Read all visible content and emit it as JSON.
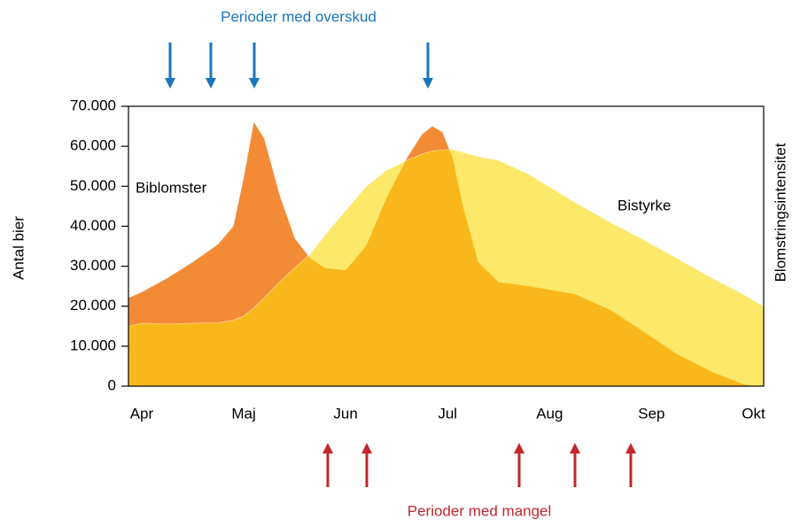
{
  "chart_data": {
    "type": "area",
    "ylabel": "Antal bier",
    "y2label": "Blomstringsintensitet",
    "annotations": [
      "Perioder med overskud",
      "Perioder med mangel"
    ],
    "x": [
      -0.13,
      0,
      0.25,
      0.5,
      0.75,
      0.9,
      1.0,
      1.1,
      1.2,
      1.35,
      1.5,
      1.65,
      1.8,
      2.0,
      2.2,
      2.4,
      2.6,
      2.75,
      2.85,
      2.95,
      3.05,
      3.15,
      3.3,
      3.5,
      3.8,
      4.25,
      4.6,
      4.9,
      5.25,
      5.6,
      5.9,
      6.0,
      6.1
    ],
    "series": [
      {
        "name": "Biblomster",
        "color": "#f38b36",
        "values": [
          22000,
          23500,
          27000,
          31000,
          35500,
          40000,
          52000,
          66000,
          62000,
          48000,
          37000,
          32000,
          29500,
          29000,
          35000,
          47000,
          57000,
          63000,
          65000,
          63500,
          57000,
          45000,
          31000,
          26000,
          25000,
          23000,
          19000,
          14000,
          8000,
          3500,
          500,
          0,
          0
        ]
      },
      {
        "name": "Bistyrke",
        "color": "#fde86a",
        "values": [
          15000,
          15700,
          15500,
          15700,
          15800,
          16500,
          17500,
          19500,
          22000,
          26000,
          29500,
          33000,
          38000,
          44000,
          50000,
          54000,
          56500,
          58000,
          58800,
          59000,
          59200,
          58500,
          57500,
          56500,
          53000,
          46000,
          41000,
          37000,
          32000,
          27000,
          23000,
          21500,
          20000
        ]
      }
    ],
    "overlap_color": "#f8b81c",
    "xlim": [
      -0.13,
      6.1
    ],
    "xticks": [
      {
        "value": 0,
        "label": "Apr"
      },
      {
        "value": 1,
        "label": "Maj"
      },
      {
        "value": 2,
        "label": "Jun"
      },
      {
        "value": 3,
        "label": "Jul"
      },
      {
        "value": 4,
        "label": "Aug"
      },
      {
        "value": 5,
        "label": "Sep"
      },
      {
        "value": 6,
        "label": "Okt"
      }
    ],
    "ylim": [
      0,
      70000
    ],
    "yticks": [
      0,
      {
        "value": 10000,
        "label": "10.000"
      },
      {
        "value": 20000,
        "label": "20.000"
      },
      {
        "value": 30000,
        "label": "30.000"
      },
      {
        "value": 40000,
        "label": "40.000"
      },
      {
        "value": 50000,
        "label": "50.000"
      },
      {
        "value": 60000,
        "label": "60.000"
      },
      {
        "value": 70000,
        "label": "70.000"
      }
    ],
    "grid": false
  }
}
